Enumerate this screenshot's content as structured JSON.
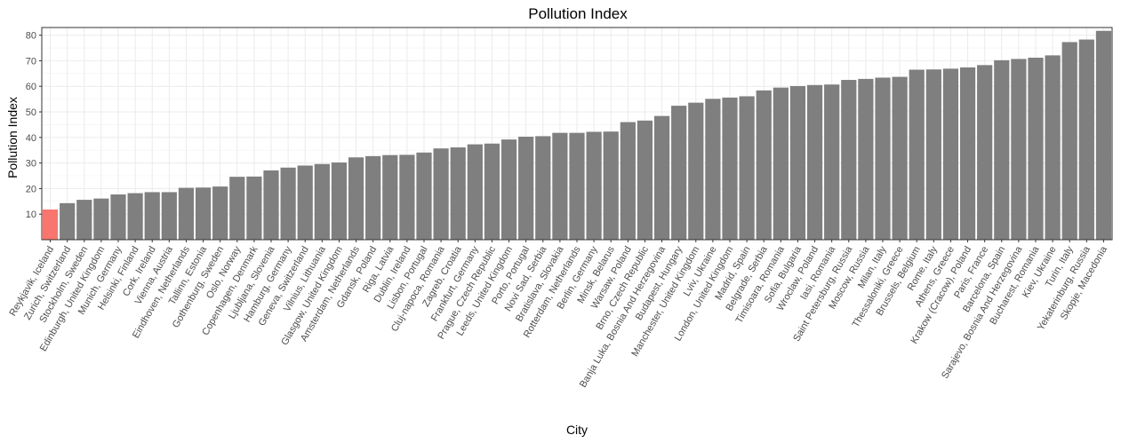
{
  "chart_data": {
    "type": "bar",
    "title": "Pollution Index",
    "xlabel": "City",
    "ylabel": "Pollution Index",
    "ylim": [
      0,
      83
    ],
    "yticks": [
      10,
      20,
      30,
      40,
      50,
      60,
      70,
      80
    ],
    "grid": true,
    "legend": "none",
    "bar_color": "#7f7f7f",
    "highlight_color": "#f8766d",
    "highlight_index": 0,
    "categories": [
      "Reykjavik, Iceland",
      "Zurich, Switzerland",
      "Stockholm, Sweden",
      "Edinburgh, United Kingdom",
      "Munich, Germany",
      "Helsinki, Finland",
      "Cork, Ireland",
      "Vienna, Austria",
      "Eindhoven, Netherlands",
      "Tallinn, Estonia",
      "Gothenburg, Sweden",
      "Oslo, Norway",
      "Copenhagen, Denmark",
      "Ljubljana, Slovenia",
      "Hamburg, Germany",
      "Geneva, Switzerland",
      "Vilnius, Lithuania",
      "Glasgow, United Kingdom",
      "Amsterdam, Netherlands",
      "Gdansk, Poland",
      "Riga, Latvia",
      "Dublin, Ireland",
      "Lisbon, Portugal",
      "Cluj-napoca, Romania",
      "Zagreb, Croatia",
      "Frankfurt, Germany",
      "Prague, Czech Republic",
      "Leeds, United Kingdom",
      "Porto, Portugal",
      "Novi Sad, Serbia",
      "Bratislava, Slovakia",
      "Rotterdam, Netherlands",
      "Berlin, Germany",
      "Minsk, Belarus",
      "Warsaw, Poland",
      "Brno, Czech Republic",
      "Banja Luka, Bosnia And Herzegovina",
      "Budapest, Hungary",
      "Manchester, United Kingdom",
      "Lviv, Ukraine",
      "London, United Kingdom",
      "Madrid, Spain",
      "Belgrade, Serbia",
      "Timisoara, Romania",
      "Sofia, Bulgaria",
      "Wroclaw, Poland",
      "Iasi, Romania",
      "Saint Petersburg, Russia",
      "Moscow, Russia",
      "Milan, Italy",
      "Thessaloniki, Greece",
      "Brussels, Belgium",
      "Rome, Italy",
      "Athens, Greece",
      "Krakow (Cracow), Poland",
      "Paris, France",
      "Barcelona, Spain",
      "Sarajevo, Bosnia And Herzegovina",
      "Bucharest, Romania",
      "Kiev, Ukraine",
      "Turin, Italy",
      "Yekaterinburg, Russia",
      "Skopje, Macedonia"
    ],
    "values": [
      11.8,
      14.3,
      15.6,
      16.1,
      17.7,
      18.2,
      18.6,
      18.6,
      20.3,
      20.4,
      20.8,
      24.6,
      24.7,
      27.1,
      28.2,
      29.0,
      29.6,
      30.2,
      32.2,
      32.7,
      33.1,
      33.2,
      34.1,
      35.7,
      36.1,
      37.3,
      37.6,
      39.2,
      40.3,
      40.5,
      41.8,
      41.8,
      42.2,
      42.3,
      46.0,
      46.6,
      48.4,
      52.4,
      53.6,
      55.1,
      55.6,
      56.1,
      58.4,
      59.5,
      60.1,
      60.5,
      60.7,
      62.5,
      62.9,
      63.4,
      63.7,
      66.5,
      66.6,
      66.9,
      67.4,
      68.3,
      70.2,
      70.7,
      71.2,
      72.1,
      77.3,
      78.3,
      81.7
    ]
  }
}
